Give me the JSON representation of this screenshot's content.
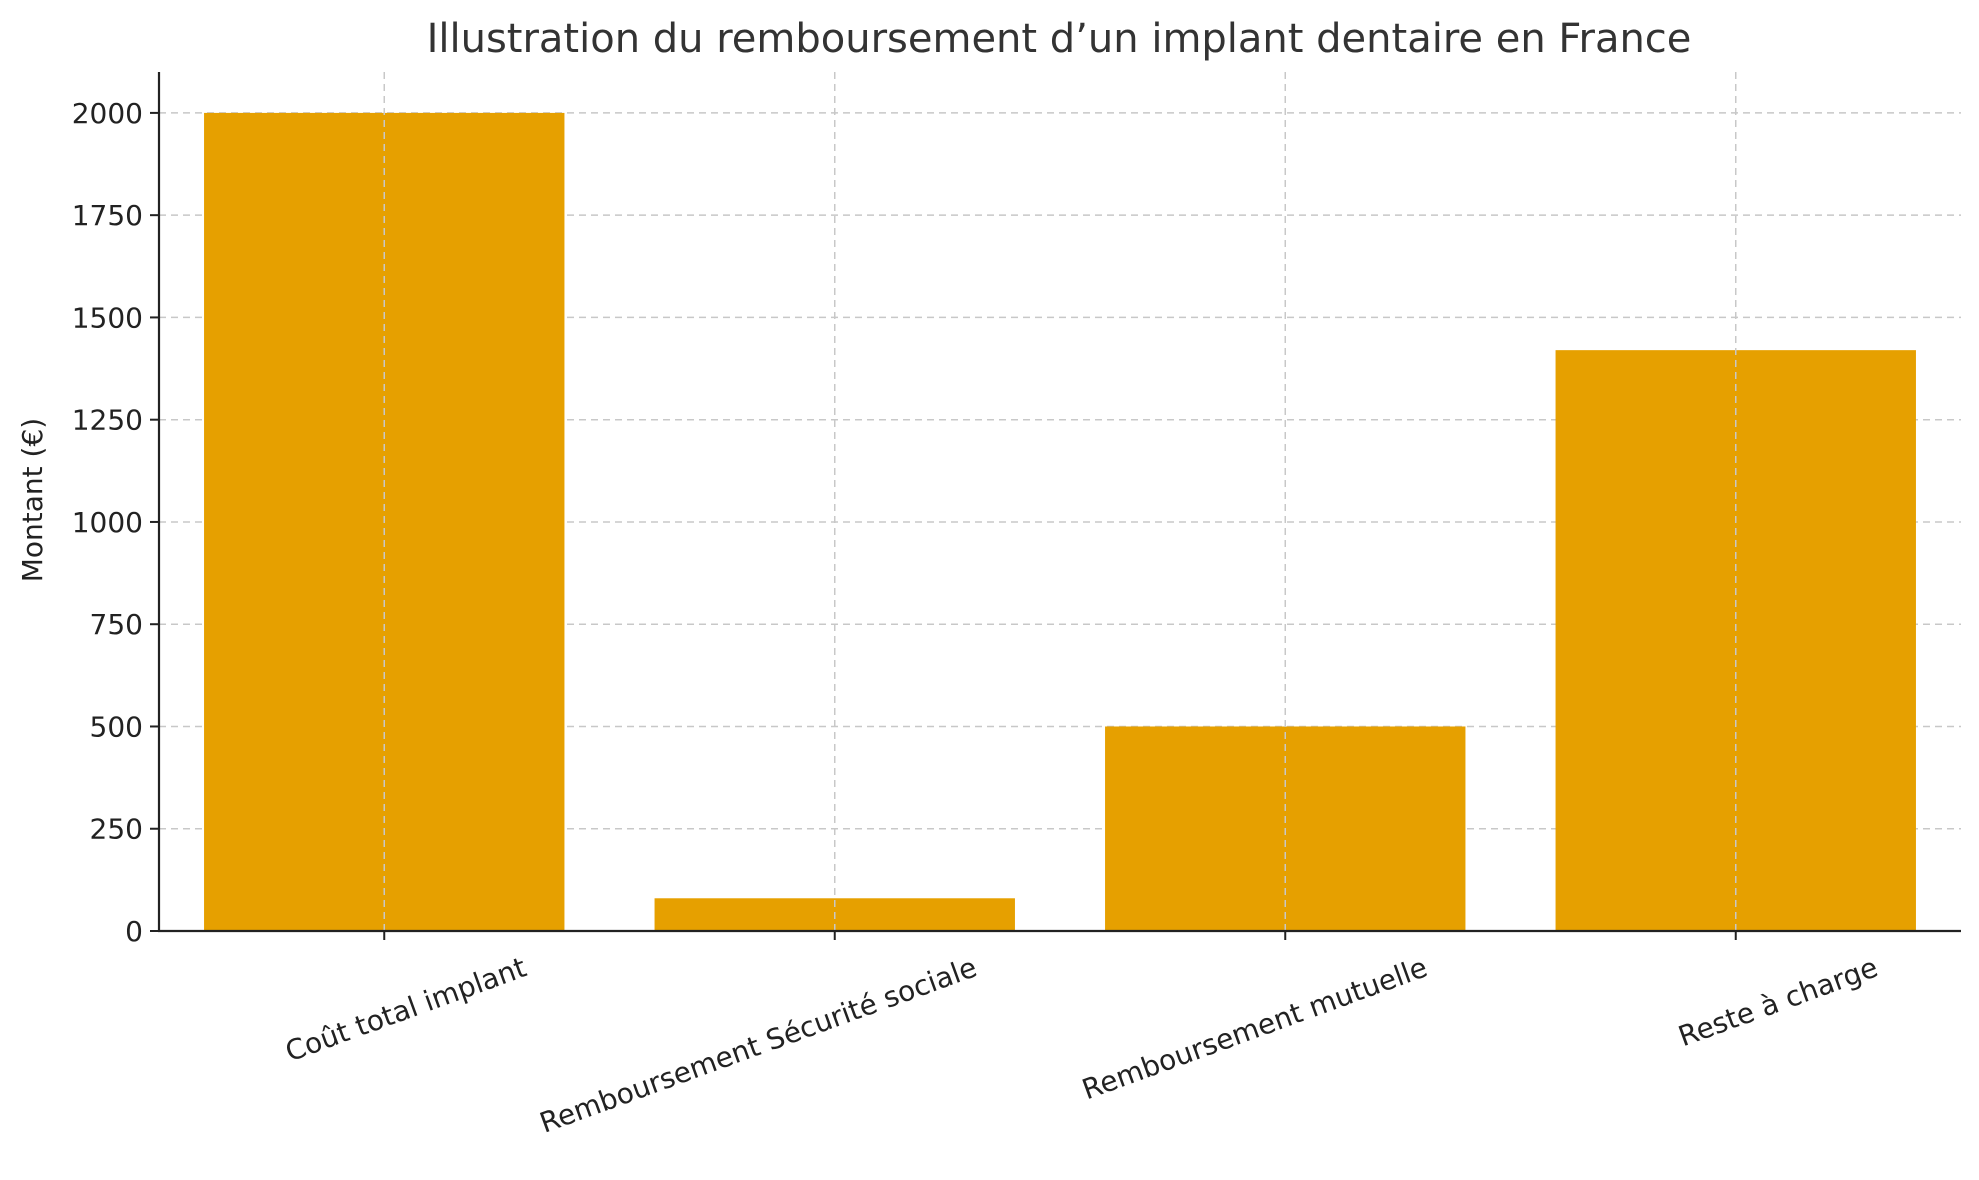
{
  "chart_data": {
    "type": "bar",
    "title": "Illustration du remboursement d’un implant dentaire en France",
    "xlabel": "",
    "ylabel": "Montant (€)",
    "categories": [
      "Coût total implant",
      "Remboursement Sécurité sociale",
      "Remboursement mutuelle",
      "Reste à charge"
    ],
    "values": [
      2000,
      80,
      500,
      1420
    ],
    "ylim": [
      0,
      2100
    ],
    "yticks": [
      0,
      250,
      500,
      750,
      1000,
      1250,
      1500,
      1750,
      2000
    ],
    "grid": true,
    "bar_color": "#E6A000"
  }
}
